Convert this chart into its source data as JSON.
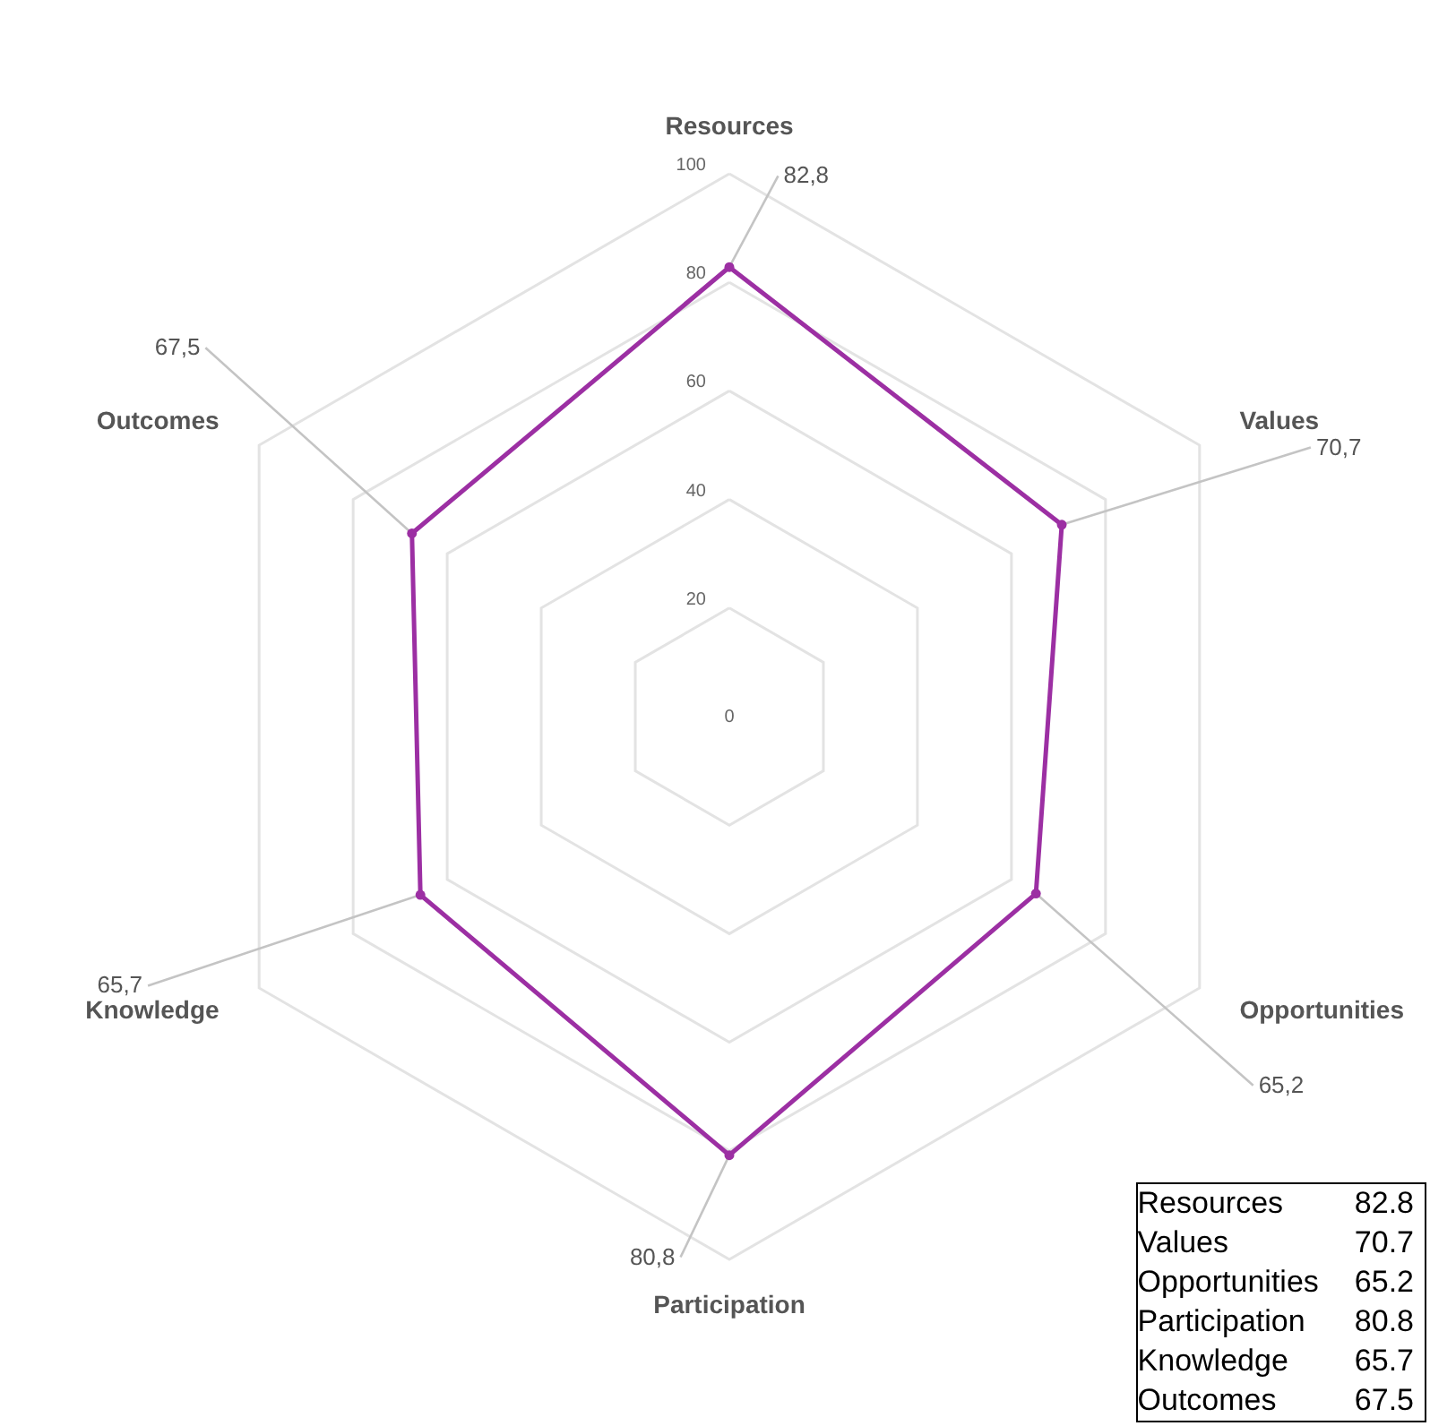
{
  "chart_data": {
    "type": "radar",
    "categories": [
      "Resources",
      "Values",
      "Opportunities",
      "Participation",
      "Knowledge",
      "Outcomes"
    ],
    "series": [
      {
        "color": "#9c2fa3",
        "values": [
          82.8,
          70.7,
          65.2,
          80.8,
          65.7,
          67.5
        ],
        "value_labels": [
          "82,8",
          "70,7",
          "65,2",
          "80,8",
          "65,7",
          "67,5"
        ]
      }
    ],
    "annotations": [
      "82.8",
      "70.7",
      "65.2",
      "80.8",
      "65.7",
      "67.5"
    ],
    "ylim": [
      0,
      100
    ],
    "yticks": [
      0,
      20,
      40,
      60,
      80,
      100
    ],
    "grid": true,
    "marker": "circle",
    "data_labels": true
  }
}
